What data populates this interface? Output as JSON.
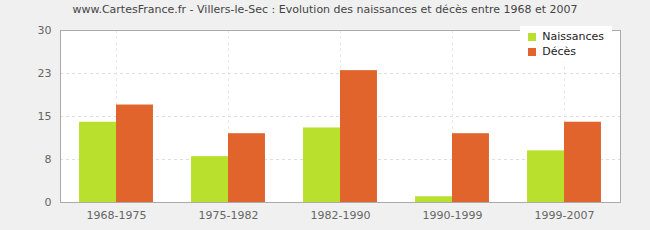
{
  "chart_data": {
    "type": "bar",
    "title": "www.CartesFrance.fr - Villers-le-Sec : Evolution des naissances et décès entre 1968 et 2007",
    "categories": [
      "1968-1975",
      "1975-1982",
      "1982-1990",
      "1990-1999",
      "1999-2007"
    ],
    "series": [
      {
        "name": "Naissances",
        "color": "#b8e02c",
        "values": [
          14,
          8,
          13,
          1,
          9
        ]
      },
      {
        "name": "Décès",
        "color": "#e0642c",
        "values": [
          17,
          12,
          23,
          12,
          14
        ]
      }
    ],
    "ylim": [
      0,
      30
    ],
    "yticks": [
      0,
      {
        "value": 7.5,
        "label": "8"
      },
      15,
      {
        "value": 22.5,
        "label": "23"
      },
      30
    ],
    "grid": true,
    "legend": "top-right"
  }
}
